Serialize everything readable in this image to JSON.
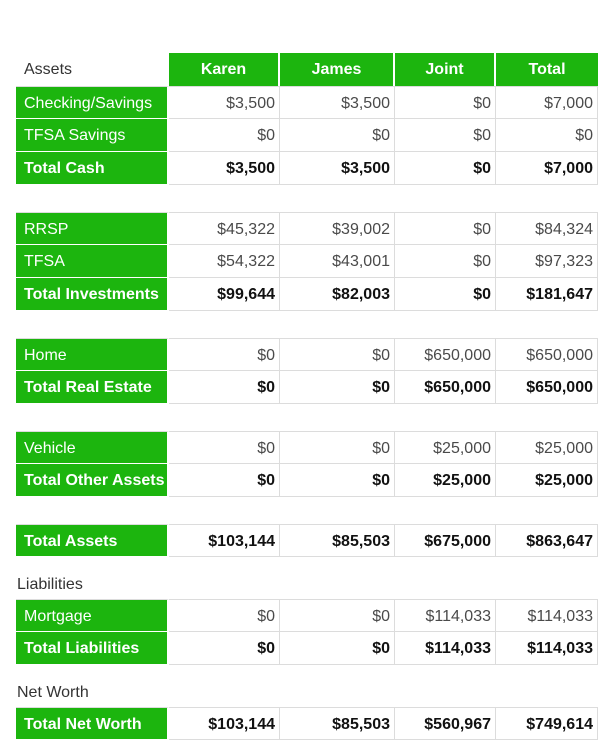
{
  "header": {
    "assets_label": "Assets",
    "columns": [
      "Karen",
      "James",
      "Joint",
      "Total"
    ]
  },
  "cash": {
    "rows": [
      {
        "label": "Checking/Savings",
        "values": [
          "$3,500",
          "$3,500",
          "$0",
          "$7,000"
        ]
      },
      {
        "label": "TFSA Savings",
        "values": [
          "$0",
          "$0",
          "$0",
          "$0"
        ]
      }
    ],
    "total": {
      "label": "Total Cash",
      "values": [
        "$3,500",
        "$3,500",
        "$0",
        "$7,000"
      ]
    }
  },
  "investments": {
    "rows": [
      {
        "label": "RRSP",
        "values": [
          "$45,322",
          "$39,002",
          "$0",
          "$84,324"
        ]
      },
      {
        "label": "TFSA",
        "values": [
          "$54,322",
          "$43,001",
          "$0",
          "$97,323"
        ]
      }
    ],
    "total": {
      "label": "Total Investments",
      "values": [
        "$99,644",
        "$82,003",
        "$0",
        "$181,647"
      ]
    }
  },
  "real_estate": {
    "rows": [
      {
        "label": "Home",
        "values": [
          "$0",
          "$0",
          "$650,000",
          "$650,000"
        ]
      }
    ],
    "total": {
      "label": "Total Real Estate",
      "values": [
        "$0",
        "$0",
        "$650,000",
        "$650,000"
      ]
    }
  },
  "other_assets": {
    "rows": [
      {
        "label": "Vehicle",
        "values": [
          "$0",
          "$0",
          "$25,000",
          "$25,000"
        ]
      }
    ],
    "total": {
      "label": "Total Other Assets",
      "values": [
        "$0",
        "$0",
        "$25,000",
        "$25,000"
      ]
    }
  },
  "total_assets": {
    "label": "Total Assets",
    "values": [
      "$103,144",
      "$85,503",
      "$675,000",
      "$863,647"
    ]
  },
  "liabilities": {
    "section_label": "Liabilities",
    "rows": [
      {
        "label": "Mortgage",
        "values": [
          "$0",
          "$0",
          "$114,033",
          "$114,033"
        ]
      }
    ],
    "total": {
      "label": "Total Liabilities",
      "values": [
        "$0",
        "$0",
        "$114,033",
        "$114,033"
      ]
    }
  },
  "net_worth": {
    "section_label": "Net Worth",
    "total": {
      "label": "Total Net Worth",
      "values": [
        "$103,144",
        "$85,503",
        "$560,967",
        "$749,614"
      ]
    }
  },
  "colors": {
    "accent_green": "#1cb50e",
    "border": "#dcdcdc"
  }
}
